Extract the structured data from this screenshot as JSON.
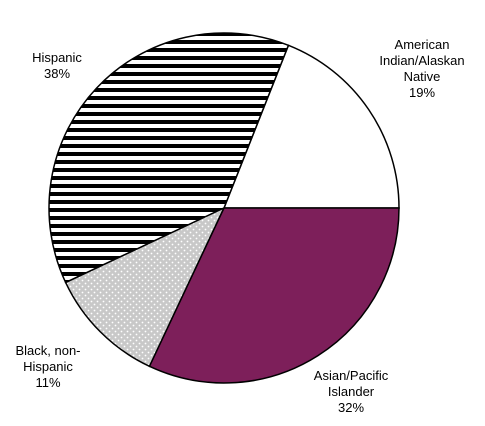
{
  "chart_data": {
    "type": "pie",
    "title": "",
    "start_angle_deg": 0,
    "direction": "counterclockwise",
    "slices": [
      {
        "label_lines": [
          "American",
          "Indian/Alaskan",
          "Native"
        ],
        "percent_label": "19%",
        "value": 19,
        "fill": "white"
      },
      {
        "label_lines": [
          "Hispanic"
        ],
        "percent_label": "38%",
        "value": 38,
        "fill": "horizontal-stripes"
      },
      {
        "label_lines": [
          "Black, non-",
          "Hispanic"
        ],
        "percent_label": "11%",
        "value": 11,
        "fill": "dotted-gray"
      },
      {
        "label_lines": [
          "Asian/Pacific",
          "Islander"
        ],
        "percent_label": "32%",
        "value": 32,
        "fill": "solid"
      }
    ],
    "colors": {
      "outline": "#000000",
      "stripes": "#000000",
      "dotted_background": "#c8c8c8",
      "dots": "#ffffff",
      "solid": "#7d1f5a",
      "white": "#ffffff"
    }
  }
}
